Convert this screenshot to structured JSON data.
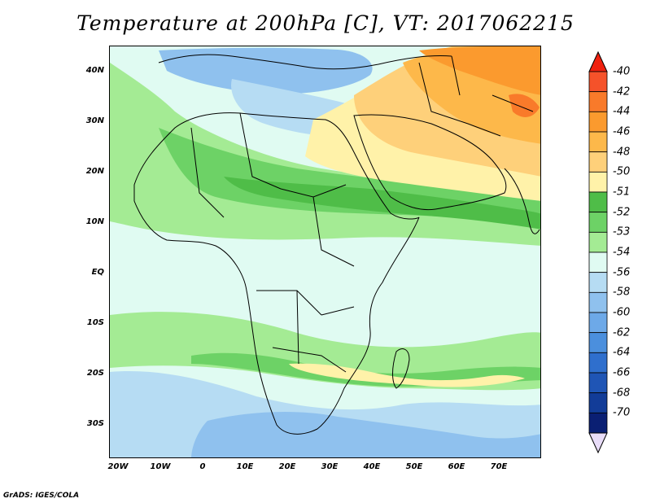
{
  "title": "Temperature at 200hPa [C], VT: 2017062215",
  "footer": "GrADS: IGES/COLA",
  "map": {
    "y_ticks": [
      "40N",
      "30N",
      "20N",
      "10N",
      "EQ",
      "10S",
      "20S",
      "30S"
    ],
    "x_ticks": [
      "20W",
      "10W",
      "0",
      "10E",
      "20E",
      "30E",
      "40E",
      "50E",
      "60E",
      "70E"
    ],
    "lon_range": [
      -23,
      79
    ],
    "lat_range": [
      -37,
      45
    ]
  },
  "legend": {
    "labels": [
      "-40",
      "-42",
      "-44",
      "-46",
      "-48",
      "-50",
      "-51",
      "-52",
      "-53",
      "-54",
      "-56",
      "-58",
      "-60",
      "-62",
      "-64",
      "-66",
      "-68",
      "-70"
    ],
    "colors": [
      "#f5522a",
      "#f97a2a",
      "#fb9a2e",
      "#fdb84a",
      "#fed07a",
      "#fff2a9",
      "#4fbd48",
      "#6dd266",
      "#a4eb94",
      "#e0fbf2",
      "#b6dcf3",
      "#8fc1ee",
      "#6da9e8",
      "#4b8fdd",
      "#2f6fcd",
      "#1f55b5",
      "#123c98",
      "#0a1f73"
    ],
    "top_arrow_color": "#f0210f",
    "bottom_arrow_color": "#e8dcf8"
  }
}
